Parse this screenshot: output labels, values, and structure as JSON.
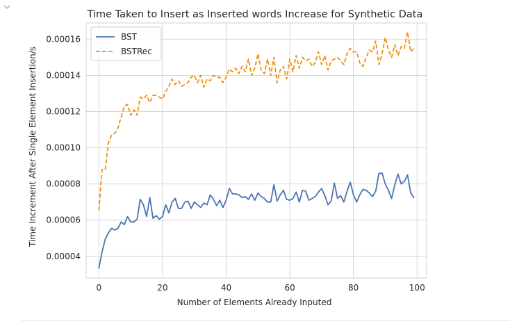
{
  "notebook": {
    "collapse_icon": "chevron-down-icon"
  },
  "chart_data": {
    "type": "line",
    "title": "Time Taken to Insert as Inserted words Increase for Synthetic Data",
    "xlabel": "Number of Elements Already Inputed",
    "ylabel": "Time Increment After Single Element Insertion/s",
    "xlim": [
      -4,
      103
    ],
    "ylim": [
      2.8e-05,
      0.000169
    ],
    "xticks": [
      0,
      20,
      40,
      60,
      80,
      100
    ],
    "xtick_labels": [
      "0",
      "20",
      "40",
      "60",
      "80",
      "100"
    ],
    "yticks": [
      4e-05,
      6e-05,
      8e-05,
      0.0001,
      0.00012,
      0.00014,
      0.00016
    ],
    "ytick_labels": [
      "0.00004",
      "0.00006",
      "0.00008",
      "0.00010",
      "0.00012",
      "0.00014",
      "0.00016"
    ],
    "grid": true,
    "legend_position": "top-left",
    "series": [
      {
        "name": "BST",
        "color": "#4c72b0",
        "style": "solid",
        "x": [
          0,
          1,
          2,
          3,
          4,
          5,
          6,
          7,
          8,
          9,
          10,
          11,
          12,
          13,
          14,
          15,
          16,
          17,
          18,
          19,
          20,
          21,
          22,
          23,
          24,
          25,
          26,
          27,
          28,
          29,
          30,
          31,
          32,
          33,
          34,
          35,
          36,
          37,
          38,
          39,
          40,
          41,
          42,
          43,
          44,
          45,
          46,
          47,
          48,
          49,
          50,
          51,
          52,
          53,
          54,
          55,
          56,
          57,
          58,
          59,
          60,
          61,
          62,
          63,
          64,
          65,
          66,
          67,
          68,
          69,
          70,
          71,
          72,
          73,
          74,
          75,
          76,
          77,
          78,
          79,
          80,
          81,
          82,
          83,
          84,
          85,
          86,
          87,
          88,
          89,
          90,
          91,
          92,
          93,
          94,
          95,
          96,
          97,
          98,
          99
        ],
        "y": [
          3.35e-05,
          4.25e-05,
          4.95e-05,
          5.3e-05,
          5.55e-05,
          5.45e-05,
          5.55e-05,
          5.9e-05,
          5.75e-05,
          6.2e-05,
          5.9e-05,
          5.9e-05,
          6.05e-05,
          7.15e-05,
          6.85e-05,
          6.2e-05,
          7.25e-05,
          6.1e-05,
          6.25e-05,
          6.05e-05,
          6.2e-05,
          6.85e-05,
          6.4e-05,
          7e-05,
          7.2e-05,
          6.65e-05,
          6.65e-05,
          7e-05,
          7.05e-05,
          6.65e-05,
          7e-05,
          6.85e-05,
          6.7e-05,
          6.95e-05,
          6.85e-05,
          7.4e-05,
          7.15e-05,
          6.8e-05,
          7.1e-05,
          6.7e-05,
          7.1e-05,
          7.75e-05,
          7.45e-05,
          7.45e-05,
          7.4e-05,
          7.25e-05,
          7.3e-05,
          7.15e-05,
          7.45e-05,
          7.1e-05,
          7.5e-05,
          7.3e-05,
          7.2e-05,
          7e-05,
          7e-05,
          7.95e-05,
          7.05e-05,
          7.4e-05,
          7.65e-05,
          7.15e-05,
          7.1e-05,
          7.2e-05,
          7.55e-05,
          7e-05,
          7.65e-05,
          7.6e-05,
          7.1e-05,
          7.2e-05,
          7.3e-05,
          7.55e-05,
          7.75e-05,
          7.35e-05,
          6.85e-05,
          7.05e-05,
          8.05e-05,
          7.2e-05,
          7.35e-05,
          7e-05,
          7.6e-05,
          8.1e-05,
          7.4e-05,
          7e-05,
          7.4e-05,
          7.7e-05,
          7.65e-05,
          7.5e-05,
          7.3e-05,
          7.6e-05,
          8.58e-05,
          8.6e-05,
          8e-05,
          7.65e-05,
          7.2e-05,
          7.95e-05,
          8.55e-05,
          8e-05,
          8.15e-05,
          8.5e-05,
          7.5e-05,
          7.25e-05
        ]
      },
      {
        "name": "BSTRec",
        "color": "#f0900f",
        "style": "dashed",
        "x": [
          0,
          1,
          2,
          3,
          4,
          5,
          6,
          7,
          8,
          9,
          10,
          11,
          12,
          13,
          14,
          15,
          16,
          17,
          18,
          19,
          20,
          21,
          22,
          23,
          24,
          25,
          26,
          27,
          28,
          29,
          30,
          31,
          32,
          33,
          34,
          35,
          36,
          37,
          38,
          39,
          40,
          41,
          42,
          43,
          44,
          45,
          46,
          47,
          48,
          49,
          50,
          51,
          52,
          53,
          54,
          55,
          56,
          57,
          58,
          59,
          60,
          61,
          62,
          63,
          64,
          65,
          66,
          67,
          68,
          69,
          70,
          71,
          72,
          73,
          74,
          75,
          76,
          77,
          78,
          79,
          80,
          81,
          82,
          83,
          84,
          85,
          86,
          87,
          88,
          89,
          90,
          91,
          92,
          93,
          94,
          95,
          96,
          97,
          98,
          99
        ],
        "y": [
          6.55e-05,
          8.8e-05,
          8.8e-05,
          0.000103,
          0.000107,
          0.000108,
          0.000111,
          0.000117,
          0.000123,
          0.000124,
          0.000118,
          0.000121,
          0.000118,
          0.000128,
          0.000127,
          0.000129,
          0.000125,
          0.000129,
          0.000129,
          0.000128,
          0.000127,
          0.000131,
          0.000134,
          0.000138,
          0.000135,
          0.000137,
          0.000134,
          0.000135,
          0.000136,
          0.000139,
          0.00014,
          0.000136,
          0.00014,
          0.0001335,
          0.000138,
          0.000137,
          0.00014,
          0.000139,
          0.000139,
          0.000136,
          0.000139,
          0.0001435,
          0.000142,
          0.000144,
          0.000141,
          0.000145,
          0.000142,
          0.000149,
          0.00014,
          0.000144,
          0.000152,
          0.000143,
          0.000141,
          0.000149,
          0.00014,
          0.00015,
          0.000136,
          0.000143,
          0.000145,
          0.000138,
          0.000149,
          0.000142,
          0.000151,
          0.000144,
          0.00015,
          0.000148,
          0.000149,
          0.000145,
          0.000147,
          0.000153,
          0.000146,
          0.000151,
          0.000143,
          0.000148,
          0.000149,
          0.00015,
          0.000148,
          0.000146,
          0.000152,
          0.000155,
          0.000153,
          0.000153,
          0.000147,
          0.000145,
          0.00015,
          0.000154,
          0.000153,
          0.000159,
          0.000146,
          0.000152,
          0.000161,
          0.000154,
          0.00015,
          0.000157,
          0.000151,
          0.000156,
          0.000155,
          0.000164,
          0.000153,
          0.000155
        ]
      }
    ]
  }
}
